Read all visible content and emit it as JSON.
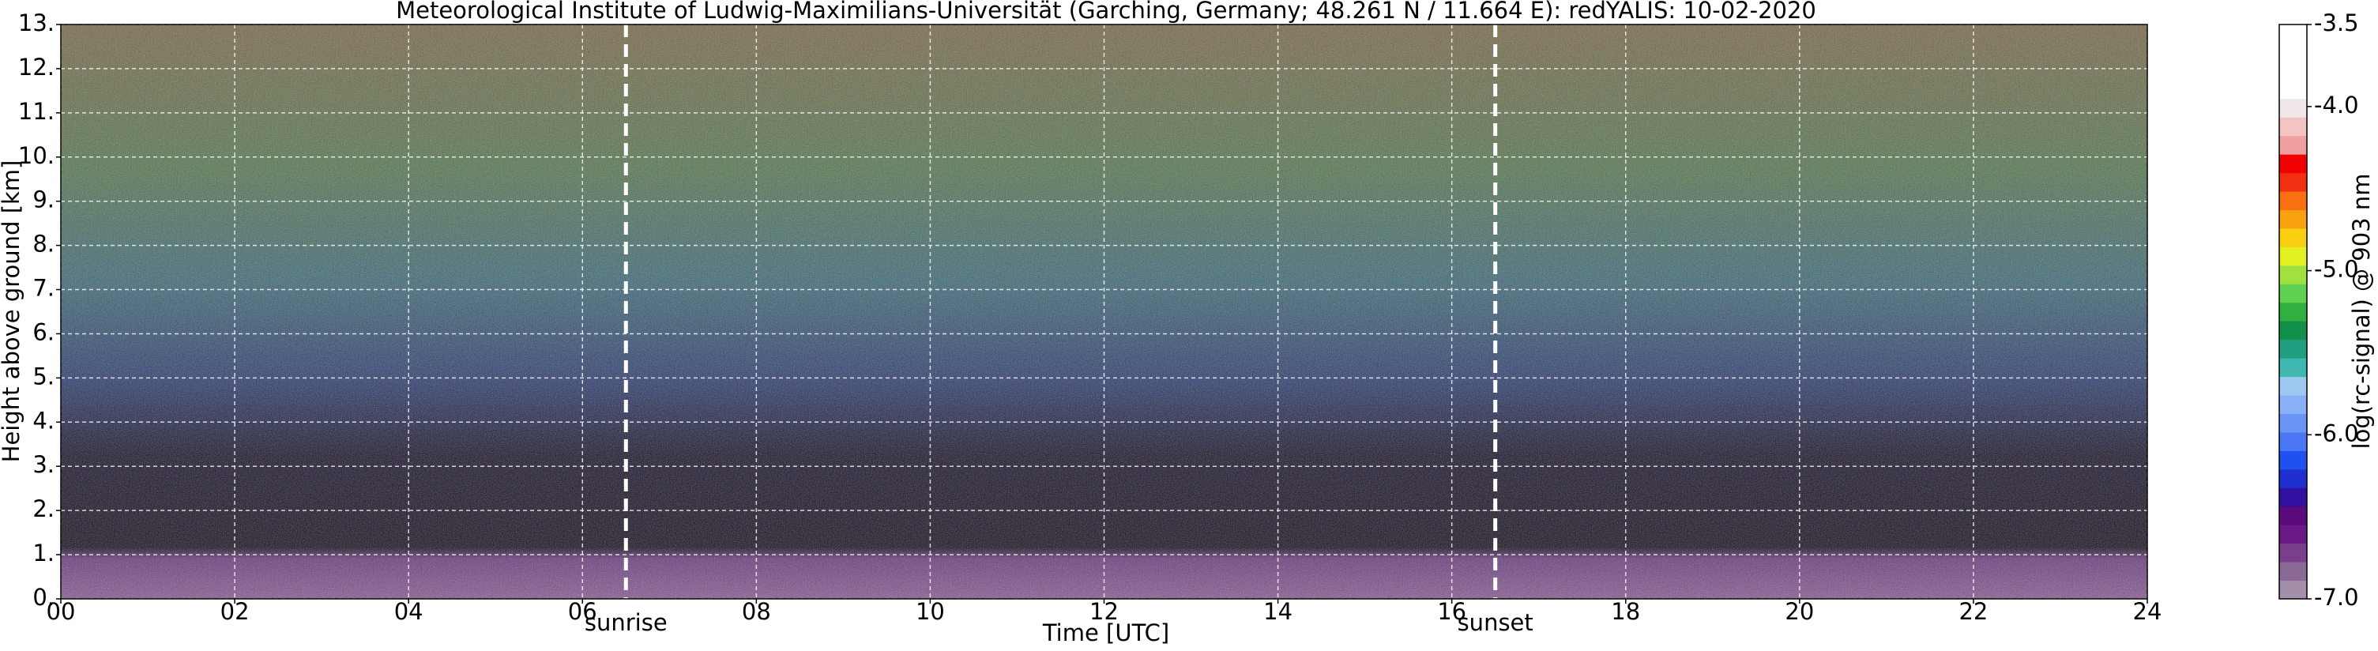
{
  "chart_data": {
    "type": "heatmap",
    "title": "Meteorological Institute of Ludwig-Maximilians-Universität (Garching, Germany; 48.261 N / 11.664 E):    redYALIS: 10-02-2020",
    "x_label": "Time [UTC]",
    "y_label": "Height above ground [km]",
    "xlim": [
      0,
      24
    ],
    "ylim": [
      0,
      13
    ],
    "xticks": [
      {
        "value": 0,
        "label": "00"
      },
      {
        "value": 2,
        "label": "02"
      },
      {
        "value": 4,
        "label": "04"
      },
      {
        "value": 6,
        "label": "06"
      },
      {
        "value": 8,
        "label": "08"
      },
      {
        "value": 10,
        "label": "10"
      },
      {
        "value": 12,
        "label": "12"
      },
      {
        "value": 14,
        "label": "14"
      },
      {
        "value": 16,
        "label": "16"
      },
      {
        "value": 18,
        "label": "18"
      },
      {
        "value": 20,
        "label": "20"
      },
      {
        "value": 22,
        "label": "22"
      },
      {
        "value": 24,
        "label": "24"
      }
    ],
    "yticks": [
      {
        "value": 0,
        "label": "0."
      },
      {
        "value": 1,
        "label": "1."
      },
      {
        "value": 2,
        "label": "2."
      },
      {
        "value": 3,
        "label": "3."
      },
      {
        "value": 4,
        "label": "4."
      },
      {
        "value": 5,
        "label": "5."
      },
      {
        "value": 6,
        "label": "6."
      },
      {
        "value": 7,
        "label": "7."
      },
      {
        "value": 8,
        "label": "8."
      },
      {
        "value": 9,
        "label": "9."
      },
      {
        "value": 10,
        "label": "10."
      },
      {
        "value": 11,
        "label": "11."
      },
      {
        "value": 12,
        "label": "12."
      },
      {
        "value": 13,
        "label": "13."
      }
    ],
    "grid": true,
    "annotations": [
      {
        "text": "sunrise",
        "x": 6.5
      },
      {
        "text": "sunset",
        "x": 16.5
      }
    ],
    "colorbar": {
      "label": "log(rc-signal) @ 903 nm",
      "lim": [
        -7,
        -3.5
      ],
      "ticks": [
        {
          "value": -7,
          "label": "-7.0"
        },
        {
          "value": -6,
          "label": "-6.0"
        },
        {
          "value": -5,
          "label": "-5.0"
        },
        {
          "value": -4,
          "label": "-4.0"
        },
        -3.5
      ],
      "colors": [
        "#a48fa8",
        "#8a6a94",
        "#7a3f8c",
        "#6a1a84",
        "#5a0a7a",
        "#3010a0",
        "#2030d0",
        "#2050f0",
        "#4a78f4",
        "#6a94f6",
        "#8ab0f8",
        "#9ec8f0",
        "#40b8b0",
        "#20a080",
        "#10904a",
        "#30b040",
        "#60d050",
        "#a0e040",
        "#e0f020",
        "#f8d010",
        "#f8a010",
        "#f87010",
        "#f03010",
        "#f00000",
        "#f0a0a0",
        "#f4c4c4",
        "#f0e8e8",
        "#ffffff",
        "#ffffff",
        "#ffffff",
        "#ffffff"
      ]
    }
  }
}
